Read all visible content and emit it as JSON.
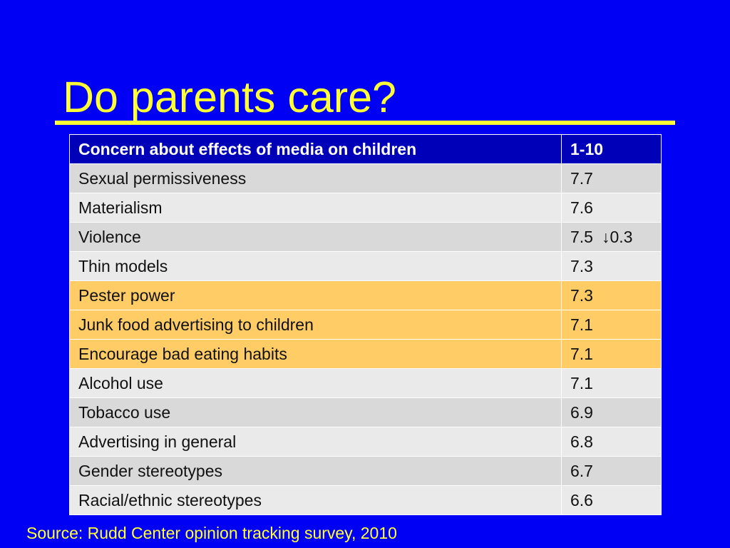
{
  "slide": {
    "title": "Do parents care?",
    "source": "Source:  Rudd Center opinion tracking survey, 2010"
  },
  "colors": {
    "background": "#0000f5",
    "title": "#ffff33",
    "header_row": "#0000b8",
    "highlight_row": "#ffcc66"
  },
  "table": {
    "headers": [
      "Concern about effects of media on children",
      "1-10"
    ],
    "rows": [
      {
        "concern": "Sexual permissiveness",
        "score": "7.7",
        "note": "",
        "highlight": false
      },
      {
        "concern": "Materialism",
        "score": "7.6",
        "note": "",
        "highlight": false
      },
      {
        "concern": "Violence",
        "score": "7.5",
        "note": "↓0.3",
        "highlight": false
      },
      {
        "concern": "Thin models",
        "score": "7.3",
        "note": "",
        "highlight": false
      },
      {
        "concern": "Pester power",
        "score": "7.3",
        "note": "",
        "highlight": true
      },
      {
        "concern": "Junk food advertising to children",
        "score": "7.1",
        "note": "",
        "highlight": true
      },
      {
        "concern": "Encourage bad eating habits",
        "score": "7.1",
        "note": "",
        "highlight": true
      },
      {
        "concern": "Alcohol use",
        "score": "7.1",
        "note": "",
        "highlight": false
      },
      {
        "concern": "Tobacco use",
        "score": "6.9",
        "note": "",
        "highlight": false
      },
      {
        "concern": "Advertising in general",
        "score": "6.8",
        "note": "",
        "highlight": false
      },
      {
        "concern": "Gender stereotypes",
        "score": "6.7",
        "note": "",
        "highlight": false
      },
      {
        "concern": "Racial/ethnic stereotypes",
        "score": "6.6",
        "note": "",
        "highlight": false
      }
    ]
  }
}
